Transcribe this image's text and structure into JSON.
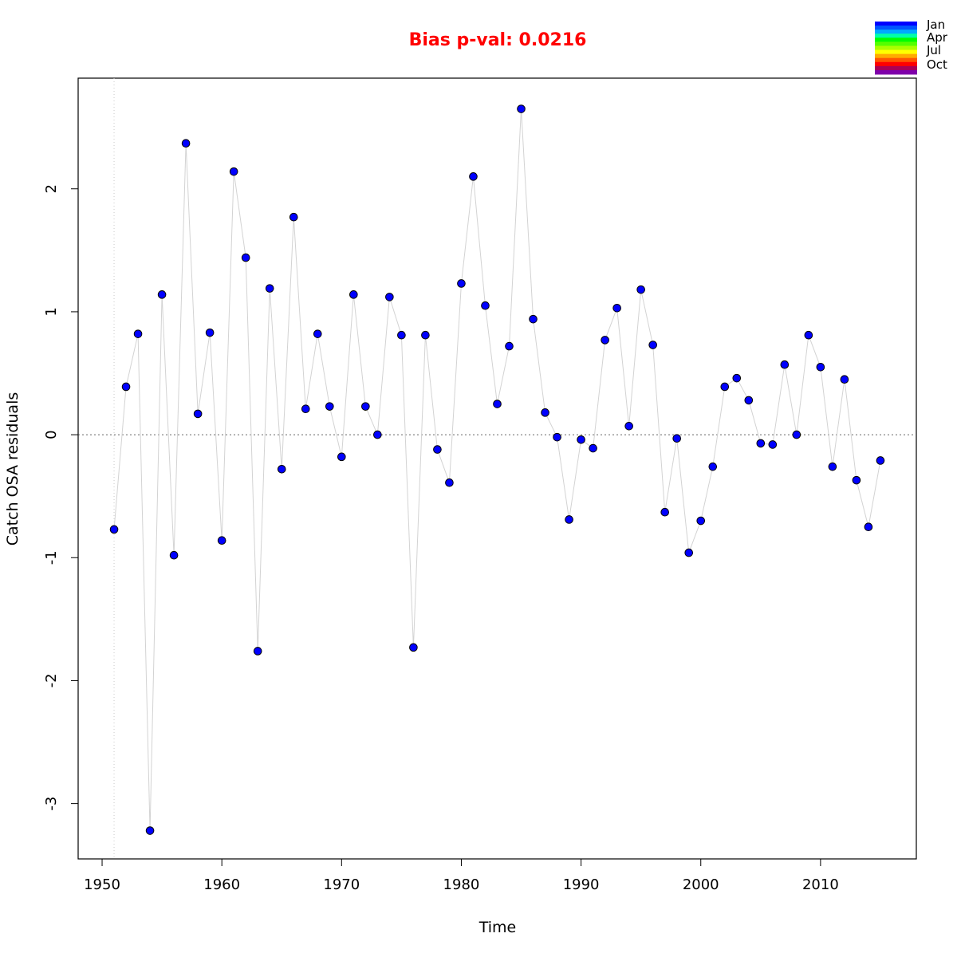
{
  "chart_data": {
    "type": "scatter",
    "title": "Bias p-val: 0.0216",
    "title_color": "#ff0000",
    "xlabel": "Time",
    "ylabel": "Catch OSA residuals",
    "xlim": [
      1948,
      2018
    ],
    "ylim": [
      -3.45,
      2.9
    ],
    "x_ticks": [
      1950,
      1960,
      1970,
      1980,
      1990,
      2000,
      2010
    ],
    "y_ticks": [
      -3,
      -2,
      -1,
      0,
      1,
      2
    ],
    "reference_line_y": 0,
    "reference_line_x": 1951,
    "grid": false,
    "point_color": "#0000ff",
    "point_outline": "#000000",
    "line_color": "#d3d3d3",
    "legend": {
      "position": "top-right",
      "labels": [
        "Jan",
        "Apr",
        "Jul",
        "Oct"
      ],
      "colors": [
        "#0000ff",
        "#0055ff",
        "#00aaff",
        "#00ffaa",
        "#00ff00",
        "#55ff00",
        "#aaff00",
        "#ffff00",
        "#ffaa00",
        "#ff5500",
        "#ff0000",
        "#aa0055",
        "#7f00aa"
      ]
    },
    "series": [
      {
        "x": [
          1951,
          1952,
          1953,
          1954,
          1955,
          1956,
          1957,
          1958,
          1959,
          1960,
          1961,
          1962,
          1963,
          1964,
          1965,
          1966,
          1967,
          1968,
          1969,
          1970,
          1971,
          1972,
          1973,
          1974,
          1975,
          1976,
          1977,
          1978,
          1979,
          1980,
          1981,
          1982,
          1983,
          1984,
          1985,
          1986,
          1987,
          1988,
          1989,
          1990,
          1991,
          1992,
          1993,
          1994,
          1995,
          1996,
          1997,
          1998,
          1999,
          2000,
          2001,
          2002,
          2003,
          2004,
          2005,
          2006,
          2007,
          2008,
          2009,
          2010,
          2011,
          2012,
          2013,
          2014,
          2015
        ],
        "y": [
          -0.77,
          0.39,
          0.82,
          -3.22,
          1.14,
          -0.98,
          2.37,
          0.17,
          0.83,
          -0.86,
          2.14,
          1.44,
          -1.76,
          1.19,
          -0.28,
          1.77,
          0.21,
          0.82,
          0.23,
          -0.18,
          1.14,
          0.23,
          0.0,
          1.12,
          0.81,
          -1.73,
          0.81,
          -0.12,
          -0.39,
          1.23,
          2.1,
          1.05,
          0.25,
          0.72,
          2.65,
          0.94,
          0.18,
          -0.02,
          -0.69,
          -0.04,
          -0.11,
          0.77,
          1.03,
          0.07,
          1.18,
          0.73,
          -0.63,
          -0.03,
          -0.96,
          -0.7,
          -0.26,
          0.39,
          0.46,
          0.28,
          -0.07,
          -0.08,
          0.57,
          0.0,
          0.81,
          0.55,
          -0.26,
          0.45,
          -0.37,
          -0.75,
          -0.21
        ]
      }
    ]
  }
}
